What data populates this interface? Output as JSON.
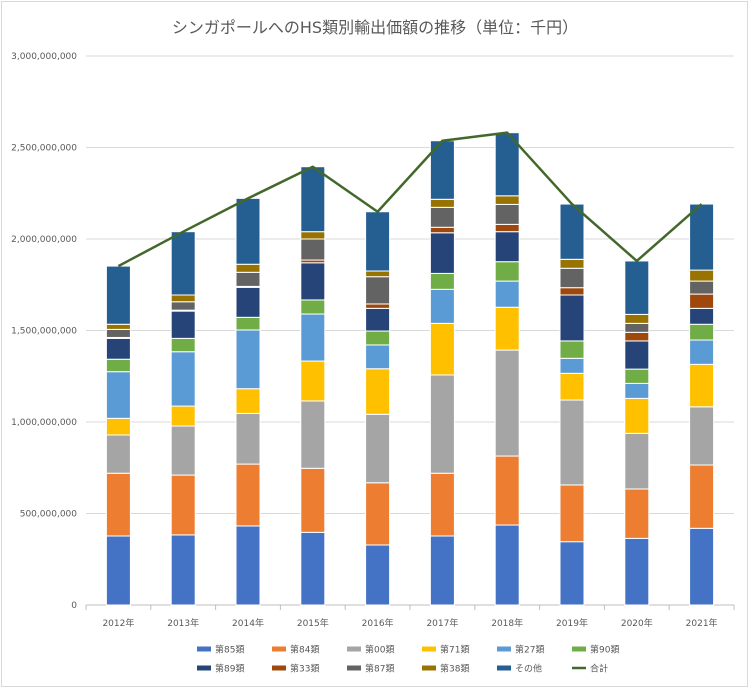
{
  "chart_data": {
    "type": "bar",
    "stacked": true,
    "title": "シンガポールへのHS類別輸出価額の推移（単位：千円）",
    "xlabel": "",
    "ylabel": "",
    "ylim": [
      0,
      3000000000
    ],
    "yticks": [
      "0",
      "500,000,000",
      "1,000,000,000",
      "1,500,000,000",
      "2,000,000,000",
      "2,500,000,000",
      "3,000,000,000"
    ],
    "grid": true,
    "legend": "bottom",
    "categories": [
      "2012年",
      "2013年",
      "2014年",
      "2015年",
      "2016年",
      "2017年",
      "2018年",
      "2019年",
      "2020年",
      "2021年"
    ],
    "series": [
      {
        "name": "第85類",
        "color": "#4472C4",
        "values": [
          377000000,
          383000000,
          432000000,
          397000000,
          328000000,
          377000000,
          437000000,
          346000000,
          364000000,
          419000000
        ]
      },
      {
        "name": "第84類",
        "color": "#ED7D31",
        "values": [
          343000000,
          327000000,
          338000000,
          350000000,
          340000000,
          343000000,
          377000000,
          310000000,
          270000000,
          346000000
        ]
      },
      {
        "name": "第00類",
        "color": "#A5A5A5",
        "values": [
          209000000,
          268000000,
          277000000,
          368000000,
          374000000,
          537000000,
          579000000,
          464000000,
          304000000,
          318000000
        ]
      },
      {
        "name": "第71類",
        "color": "#FFC000",
        "values": [
          91000000,
          109000000,
          135000000,
          218000000,
          249000000,
          282000000,
          234000000,
          146000000,
          191000000,
          232000000
        ]
      },
      {
        "name": "第27類",
        "color": "#5B9BD5",
        "values": [
          255000000,
          297000000,
          321000000,
          257000000,
          130000000,
          186000000,
          143000000,
          82000000,
          82000000,
          133000000
        ]
      },
      {
        "name": "第90類",
        "color": "#70AD47",
        "values": [
          68000000,
          73000000,
          69000000,
          77000000,
          76000000,
          87000000,
          106000000,
          95000000,
          78000000,
          86000000
        ]
      },
      {
        "name": "第89類",
        "color": "#264478",
        "values": [
          114000000,
          149000000,
          164000000,
          203000000,
          124000000,
          222000000,
          164000000,
          251000000,
          154000000,
          87000000
        ]
      },
      {
        "name": "第33類",
        "color": "#9E480E",
        "values": [
          5000000,
          5000000,
          5000000,
          15000000,
          24000000,
          30000000,
          40000000,
          40000000,
          47000000,
          78000000
        ]
      },
      {
        "name": "第87類",
        "color": "#636363",
        "values": [
          44000000,
          46000000,
          77000000,
          115000000,
          149000000,
          109000000,
          109000000,
          106000000,
          49000000,
          71000000
        ]
      },
      {
        "name": "第38類",
        "color": "#997300",
        "values": [
          28000000,
          37000000,
          44000000,
          40000000,
          31000000,
          44000000,
          47000000,
          49000000,
          49000000,
          60000000
        ]
      },
      {
        "name": "その他",
        "color": "#255E91",
        "values": [
          318000000,
          346000000,
          360000000,
          355000000,
          324000000,
          320000000,
          345000000,
          302000000,
          292000000,
          361000000
        ]
      }
    ],
    "line_series": {
      "name": "合計",
      "color": "#43682B",
      "values": [
        1852000000,
        2040000000,
        2222000000,
        2395000000,
        2149000000,
        2537000000,
        2581000000,
        2191000000,
        1880000000,
        2191000000
      ]
    }
  }
}
